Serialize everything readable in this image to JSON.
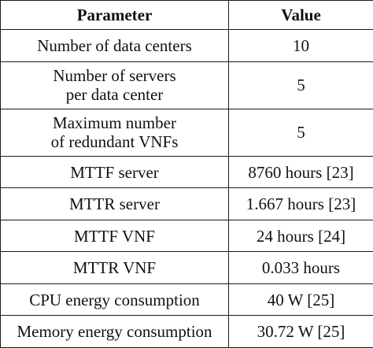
{
  "table": {
    "headers": [
      "Parameter",
      "Value"
    ],
    "rows": [
      {
        "param_lines": [
          "Number of data centers"
        ],
        "value": "10"
      },
      {
        "param_lines": [
          "Number of servers",
          "per data center"
        ],
        "value": "5"
      },
      {
        "param_lines": [
          "Maximum number",
          "of redundant VNFs"
        ],
        "value": "5"
      },
      {
        "param_lines": [
          "MTTF server"
        ],
        "value": "8760 hours [23]"
      },
      {
        "param_lines": [
          "MTTR server"
        ],
        "value": "1.667 hours [23]"
      },
      {
        "param_lines": [
          "MTTF VNF"
        ],
        "value": "24 hours [24]"
      },
      {
        "param_lines": [
          "MTTR VNF"
        ],
        "value": "0.033 hours"
      },
      {
        "param_lines": [
          "CPU energy consumption"
        ],
        "value": "40 W [25]"
      },
      {
        "param_lines": [
          "Memory energy consumption"
        ],
        "value": "30.72 W [25]"
      }
    ]
  }
}
